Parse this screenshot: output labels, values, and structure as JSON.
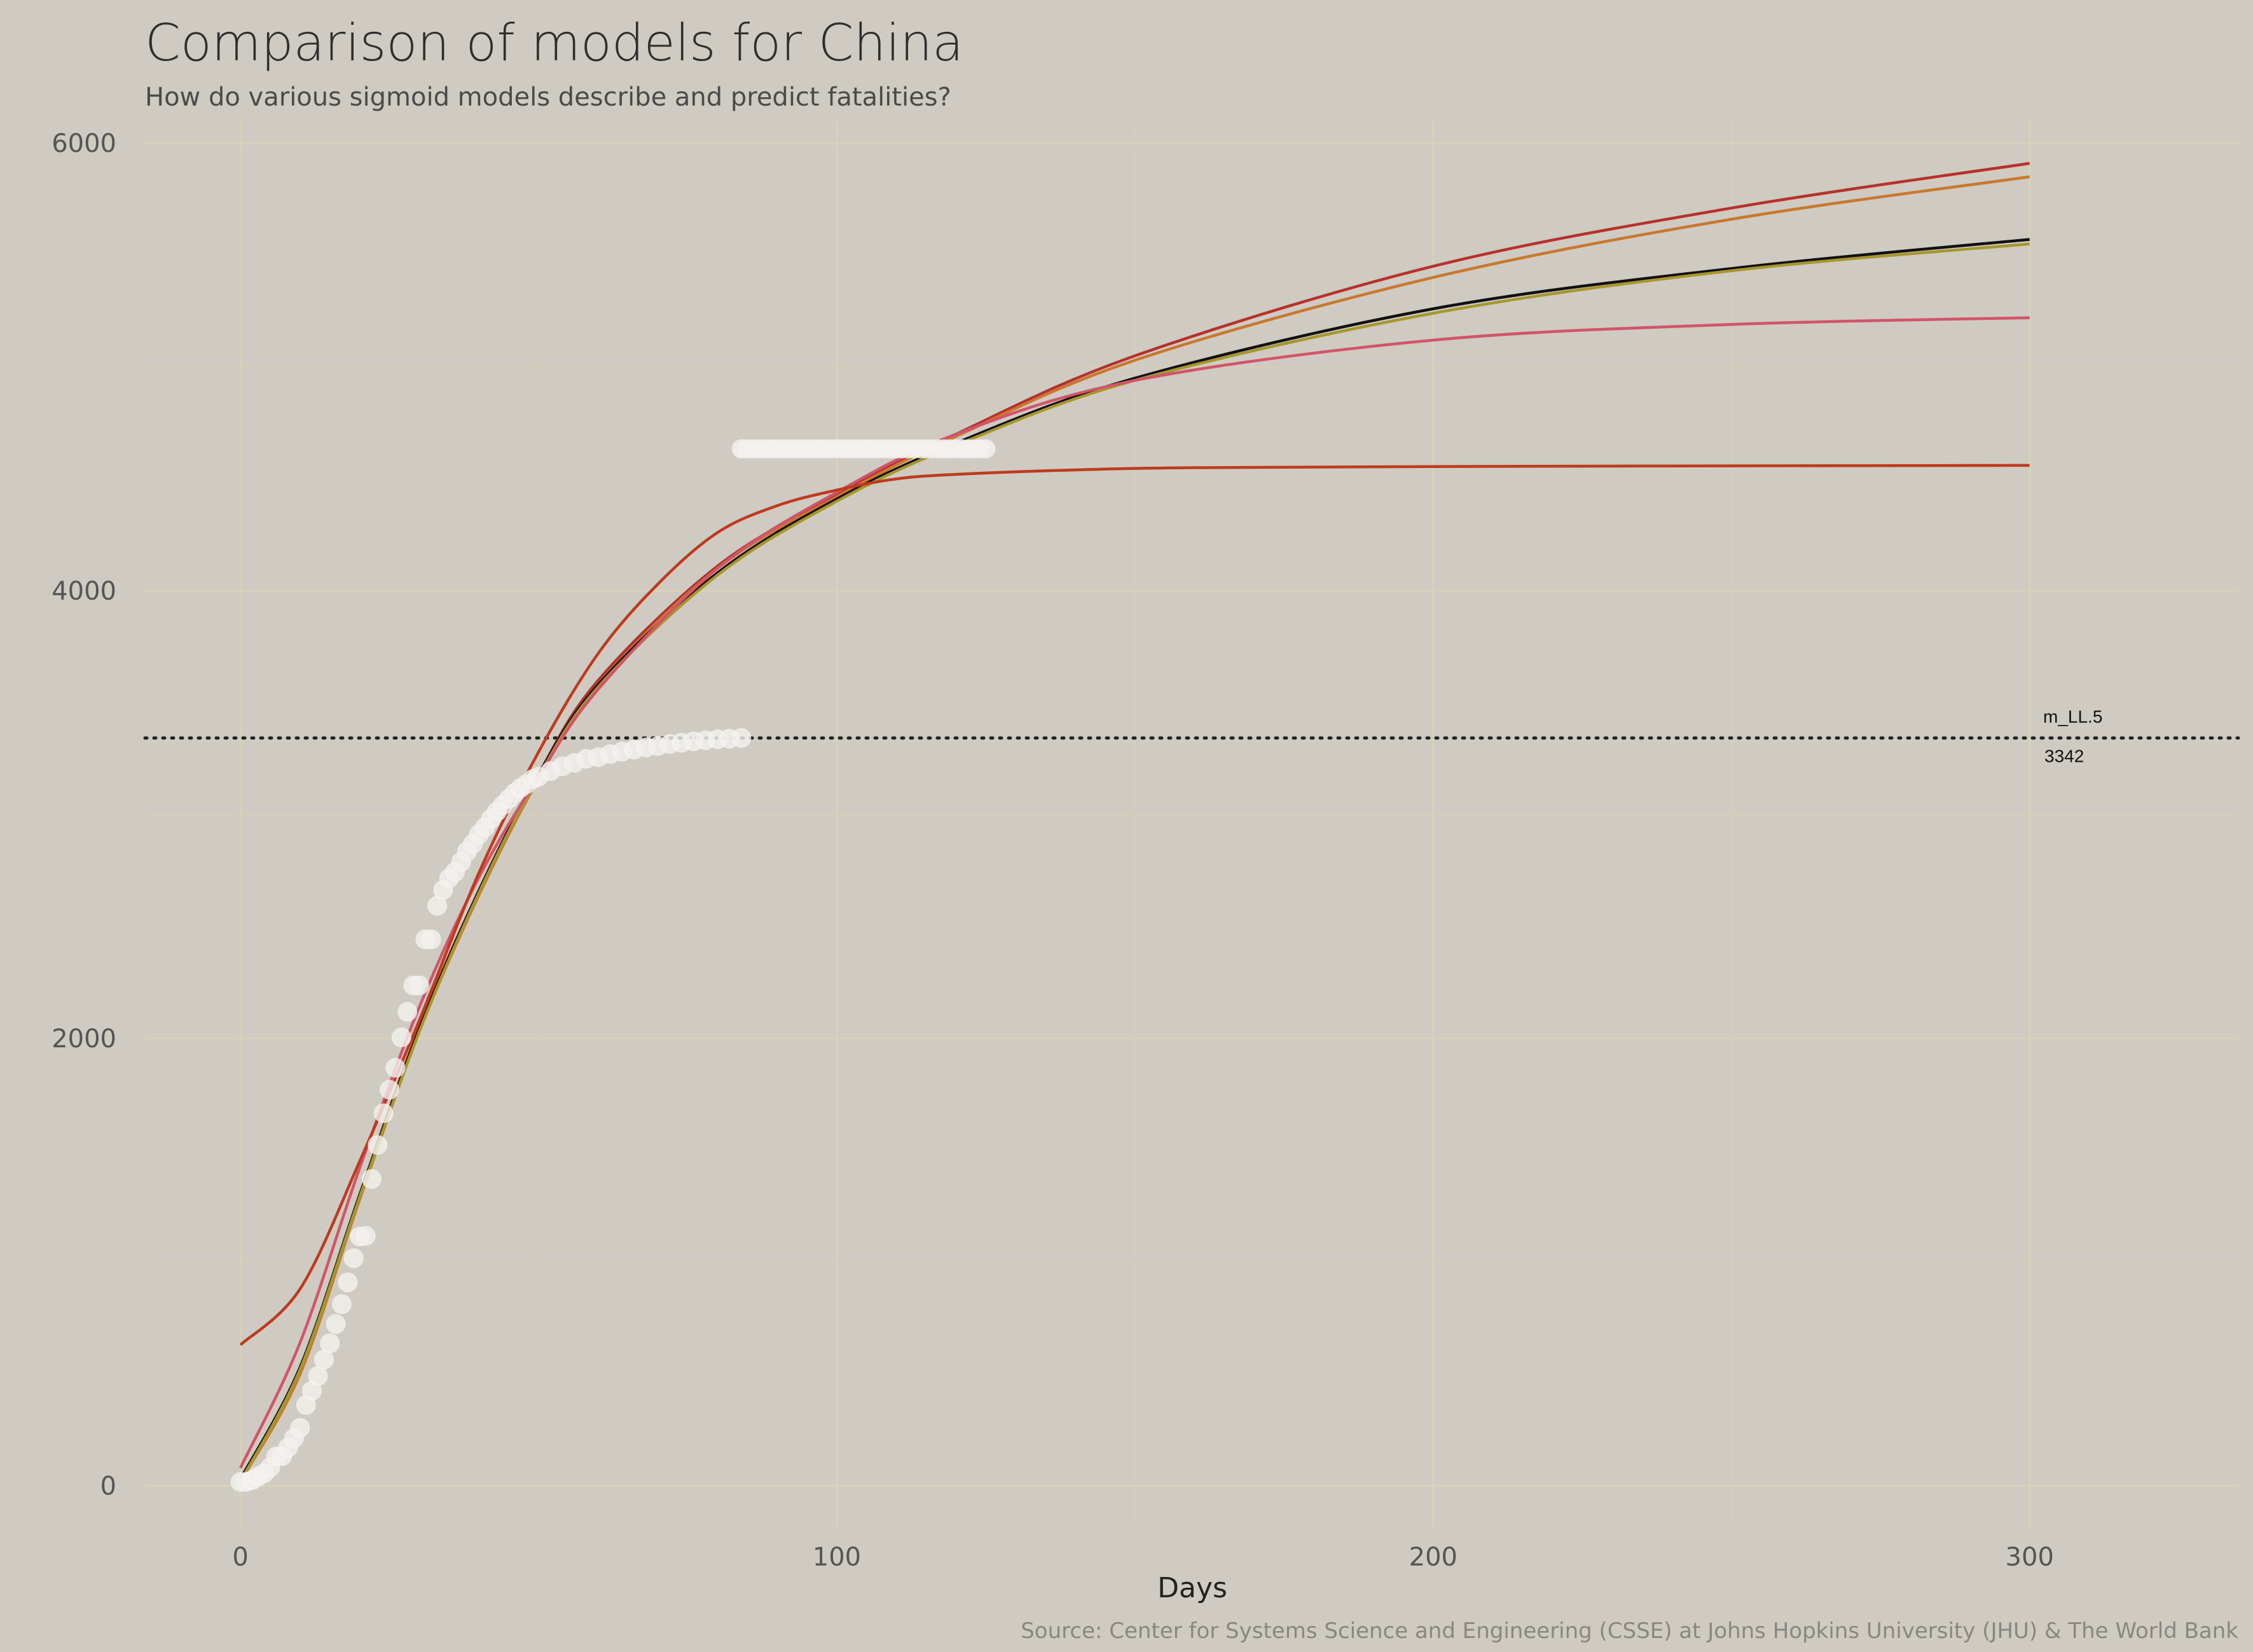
{
  "chart_data": {
    "type": "line",
    "title": "Comparison of models for China",
    "subtitle": "How do various sigmoid models describe and predict fatalities?",
    "xlabel": "Days",
    "ylabel": "",
    "caption": "Source: Center for Systems Science and Engineering (CSSE) at Johns Hopkins University (JHU) & The World Bank",
    "xlim": [
      -16,
      335
    ],
    "ylim": [
      -180,
      6100
    ],
    "x_ticks": [
      0,
      100,
      200,
      300
    ],
    "y_ticks": [
      0,
      2000,
      4000,
      6000
    ],
    "grid": true,
    "legend": "none",
    "reference_line": {
      "y": 3342,
      "label": "m_LL.5",
      "value_label": "3342",
      "style": "dotted",
      "color": "#222222"
    },
    "observed_points": {
      "color": "#f3f1ee",
      "x": [
        0,
        1,
        2,
        3,
        4,
        5,
        6,
        7,
        8,
        9,
        10,
        11,
        12,
        13,
        14,
        15,
        16,
        17,
        18,
        19,
        20,
        21,
        22,
        23,
        24,
        25,
        26,
        27,
        28,
        29,
        30,
        31,
        32,
        33,
        34,
        35,
        36,
        37,
        38,
        39,
        40,
        41,
        42,
        43,
        44,
        45,
        46,
        47,
        48,
        49,
        50,
        52,
        54,
        56,
        58,
        60,
        62,
        64,
        66,
        68,
        70,
        72,
        74,
        76,
        78,
        80,
        82,
        84
      ],
      "y": [
        17,
        18,
        26,
        42,
        56,
        82,
        131,
        133,
        171,
        213,
        259,
        361,
        425,
        491,
        564,
        637,
        723,
        812,
        909,
        1017,
        1114,
        1117,
        1371,
        1523,
        1665,
        1770,
        1868,
        2004,
        2118,
        2236,
        2236,
        2442,
        2442,
        2592,
        2663,
        2715,
        2744,
        2788,
        2835,
        2870,
        2912,
        2943,
        2981,
        3013,
        3042,
        3070,
        3097,
        3119,
        3136,
        3158,
        3169,
        3194,
        3215,
        3231,
        3249,
        3256,
        3270,
        3281,
        3290,
        3300,
        3306,
        3315,
        3321,
        3327,
        3332,
        3336,
        3339,
        3342
      ]
    },
    "observed_points_plateau": {
      "x_range": [
        84,
        125
      ],
      "y": 4634,
      "color": "#f3f1ee"
    },
    "series": [
      {
        "color": "#b8312b",
        "x": [
          0,
          10,
          20,
          30,
          40,
          50,
          60,
          80,
          100,
          120,
          150,
          200,
          250,
          300
        ],
        "y": [
          20,
          520,
          1300,
          2050,
          2660,
          3180,
          3600,
          4110,
          4430,
          4700,
          5050,
          5450,
          5710,
          5910
        ]
      },
      {
        "color": "#c8782e",
        "x": [
          0,
          10,
          20,
          30,
          40,
          50,
          60,
          80,
          100,
          120,
          150,
          200,
          250,
          300
        ],
        "y": [
          20,
          500,
          1280,
          2030,
          2640,
          3160,
          3580,
          4100,
          4420,
          4690,
          5030,
          5400,
          5660,
          5850
        ]
      },
      {
        "color": "#111111",
        "x": [
          0,
          10,
          20,
          30,
          40,
          50,
          60,
          80,
          100,
          120,
          150,
          200,
          250,
          300
        ],
        "y": [
          30,
          530,
          1300,
          2040,
          2660,
          3180,
          3580,
          4080,
          4410,
          4660,
          4950,
          5260,
          5440,
          5570
        ]
      },
      {
        "color": "#a8962e",
        "x": [
          0,
          10,
          20,
          30,
          40,
          50,
          60,
          80,
          100,
          120,
          150,
          200,
          250,
          300
        ],
        "y": [
          20,
          520,
          1290,
          2030,
          2650,
          3170,
          3570,
          4070,
          4400,
          4650,
          4940,
          5240,
          5430,
          5550
        ]
      },
      {
        "color": "#d2546a",
        "x": [
          0,
          10,
          20,
          30,
          40,
          50,
          60,
          80,
          100,
          120,
          150,
          200,
          250,
          300
        ],
        "y": [
          80,
          640,
          1420,
          2140,
          2720,
          3170,
          3560,
          4100,
          4440,
          4700,
          4940,
          5120,
          5190,
          5220
        ]
      },
      {
        "color": "#bf3a1e",
        "x": [
          0,
          10,
          20,
          30,
          40,
          50,
          60,
          70,
          80,
          90,
          100,
          110,
          120,
          140,
          160,
          200,
          250,
          300
        ],
        "y": [
          630,
          880,
          1450,
          2080,
          2740,
          3280,
          3720,
          4030,
          4260,
          4380,
          4450,
          4500,
          4520,
          4540,
          4550,
          4555,
          4558,
          4560
        ]
      }
    ]
  }
}
